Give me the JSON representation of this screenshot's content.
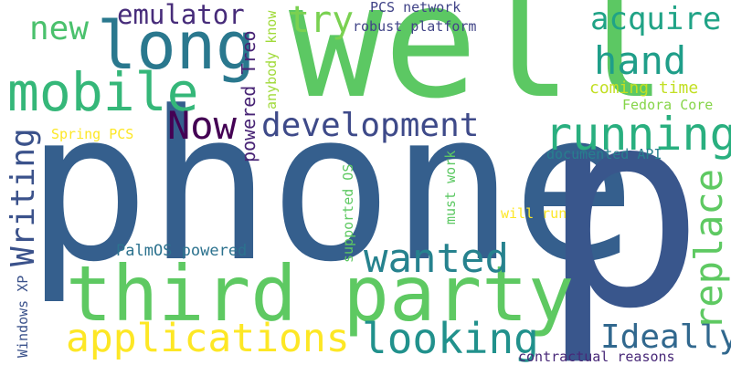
{
  "words": {
    "phone": "phone",
    "well": "well",
    "p": "p",
    "third_party": "third party",
    "long": "long",
    "mobile": "mobile",
    "running": "running",
    "applications": "applications",
    "writing": "Writing",
    "development": "development",
    "now": "Now",
    "wanted": "wanted",
    "looking": "looking",
    "replace": "replace",
    "hand": "hand",
    "acquire": "acquire",
    "try": "try",
    "emulator": "emulator",
    "new": "new",
    "ideally": "Ideally",
    "coming_time": "coming time",
    "pcs_network": "PCS network",
    "robust_platform": "robust platform",
    "powered_treo": "powered Treo",
    "anybody_know": "anybody know",
    "fedora_core": "Fedora Core",
    "documented_api": "documented API",
    "spring_pcs": "Spring PCS",
    "supported_os": "supported OS",
    "must_work": "must work",
    "will_run": "will run",
    "palmos_powered": "PalmOS powered",
    "windows_xp": "Windows XP",
    "contractual_reasons": "contractual reasons"
  },
  "colors": {
    "phone": "#355f8d",
    "well": "#5cc863",
    "p": "#39568c",
    "third_party": "#5ec962",
    "long": "#2a788e",
    "mobile": "#35b779",
    "running": "#29af7f",
    "applications": "#fde725",
    "writing": "#3b528b",
    "development": "#3e4a89",
    "now": "#440154",
    "wanted": "#26828e",
    "looking": "#21918c",
    "replace": "#5ec962",
    "hand": "#1f9e89",
    "acquire": "#20a386",
    "try": "#7ad151",
    "emulator": "#472c7a",
    "new": "#4ac16d",
    "ideally": "#31688e",
    "coming_time": "#c2df23",
    "pcs_network": "#404387",
    "robust_platform": "#414487",
    "powered_treo": "#482475",
    "anybody_know": "#a0da39",
    "fedora_core": "#86d549",
    "documented_api": "#277f8e",
    "spring_pcs": "#fde725",
    "supported_os": "#5ec962",
    "must_work": "#5cc863",
    "will_run": "#fde725",
    "palmos_powered": "#2c728e",
    "windows_xp": "#3b528b",
    "contractual_reasons": "#482878"
  }
}
